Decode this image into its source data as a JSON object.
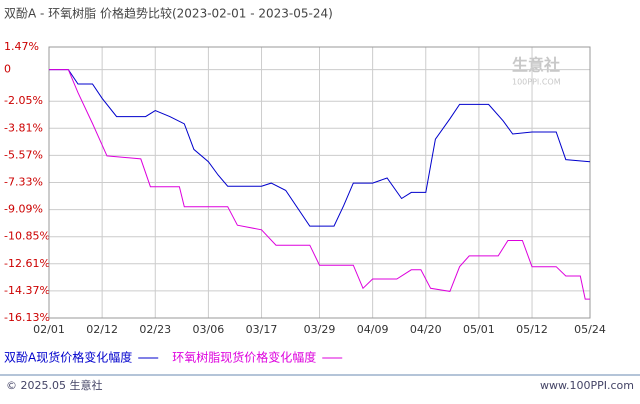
{
  "chart_data": {
    "type": "line",
    "title": "双酚A - 环氧树脂 价格趋势比较(2023-02-01 - 2023-05-24)",
    "ylim": [
      -16.13,
      1.47
    ],
    "yticks": [
      {
        "value": 1.47,
        "label": "1.47%"
      },
      0,
      {
        "value": -2.05,
        "label": "-2.05%"
      },
      {
        "value": -3.81,
        "label": "-3.81%"
      },
      {
        "value": -5.57,
        "label": "-5.57%"
      },
      {
        "value": -7.33,
        "label": "-7.33%"
      },
      {
        "value": -9.09,
        "label": "-9.09%"
      },
      {
        "value": -10.85,
        "label": "-10.85%"
      },
      {
        "value": -12.61,
        "label": "-12.61%"
      },
      {
        "value": -14.37,
        "label": "-14.37%"
      },
      {
        "value": -16.13,
        "label": "-16.13%"
      }
    ],
    "xticks": [
      "02/01",
      "02/12",
      "02/23",
      "03/06",
      "03/17",
      "03/29",
      "04/09",
      "04/20",
      "05/01",
      "05/12",
      "05/24"
    ],
    "grid": true,
    "series": [
      {
        "name": "双酚A现货价格变化幅度",
        "color": "#0000cc",
        "x": [
          "02/01",
          "02/05",
          "02/07",
          "02/10",
          "02/12",
          "02/15",
          "02/21",
          "02/23",
          "02/26",
          "03/01",
          "03/03",
          "03/06",
          "03/08",
          "03/10",
          "03/17",
          "03/19",
          "03/22",
          "03/27",
          "04/01",
          "04/03",
          "04/05",
          "04/09",
          "04/12",
          "04/15",
          "04/17",
          "04/20",
          "04/22",
          "04/25",
          "04/27",
          "05/03",
          "05/06",
          "05/08",
          "05/12",
          "05/17",
          "05/19",
          "05/24"
        ],
        "values": [
          0,
          0,
          -0.93,
          -0.93,
          -1.86,
          -3.05,
          -3.05,
          -2.66,
          -3.05,
          -3.52,
          -5.18,
          -5.98,
          -6.84,
          -7.57,
          -7.57,
          -7.37,
          -7.84,
          -10.16,
          -10.16,
          -8.83,
          -7.37,
          -7.37,
          -7.04,
          -8.37,
          -7.97,
          -7.97,
          -4.52,
          -3.19,
          -2.26,
          -2.26,
          -3.32,
          -4.18,
          -4.05,
          -4.05,
          -5.84,
          -5.98
        ]
      },
      {
        "name": "环氧树脂现货价格变化幅度",
        "color": "#dd00dd",
        "x": [
          "02/01",
          "02/05",
          "02/07",
          "02/10",
          "02/13",
          "02/20",
          "02/22",
          "02/28",
          "03/01",
          "03/10",
          "03/12",
          "03/17",
          "03/20",
          "03/27",
          "03/29",
          "04/05",
          "04/07",
          "04/09",
          "04/14",
          "04/17",
          "04/19",
          "04/21",
          "04/25",
          "04/27",
          "04/29",
          "05/05",
          "05/07",
          "05/10",
          "05/12",
          "05/17",
          "05/19",
          "05/22",
          "05/23",
          "05/24"
        ],
        "values": [
          0,
          0,
          -1.5,
          -3.5,
          -5.6,
          -5.8,
          -7.6,
          -7.6,
          -8.9,
          -8.9,
          -10.1,
          -10.4,
          -11.4,
          -11.4,
          -12.7,
          -12.7,
          -14.2,
          -13.6,
          -13.6,
          -13.0,
          -13.0,
          -14.2,
          -14.4,
          -12.8,
          -12.1,
          -12.1,
          -11.1,
          -11.1,
          -12.8,
          -12.8,
          -13.4,
          -13.4,
          -14.9,
          -14.9
        ]
      }
    ]
  },
  "watermark": {
    "brand": "生意社",
    "site": "100PPI.COM"
  },
  "footer": {
    "copyright": "© 2025.05 生意社",
    "site": "www.100PPI.com"
  }
}
